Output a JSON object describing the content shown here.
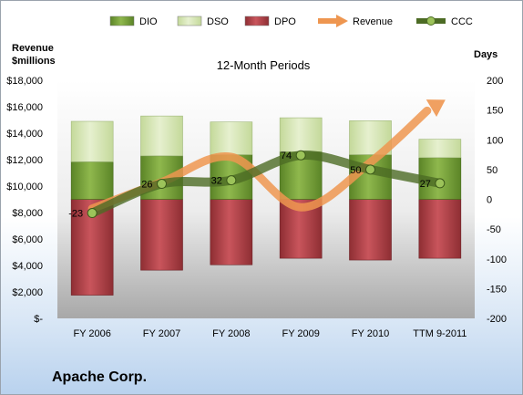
{
  "chart_data": {
    "type": "bar",
    "title": "12-Month Periods",
    "company": "Apache Corp.",
    "left_axis_label": [
      "Revenue",
      "$millions"
    ],
    "right_axis_label": "Days",
    "categories": [
      "FY 2006",
      "FY 2007",
      "FY 2008",
      "FY 2009",
      "FY 2010",
      "TTM 9-2011"
    ],
    "left_ylim": [
      0,
      18000
    ],
    "left_ticks": [
      0,
      2000,
      4000,
      6000,
      8000,
      10000,
      12000,
      14000,
      16000,
      18000
    ],
    "left_tick_labels": [
      "$-",
      "$2,000",
      "$4,000",
      "$6,000",
      "$8,000",
      "$10,000",
      "$12,000",
      "$14,000",
      "$16,000",
      "$18,000"
    ],
    "right_ylim": [
      -200,
      200
    ],
    "right_ticks": [
      -200,
      -150,
      -100,
      -50,
      0,
      50,
      100,
      150,
      200
    ],
    "right_tick_labels": [
      "-200",
      "-150",
      "-100",
      "-50",
      "0",
      "50",
      "100",
      "150",
      "200"
    ],
    "legend": [
      {
        "name": "DIO",
        "kind": "bar",
        "color": "#77a03a"
      },
      {
        "name": "DSO",
        "kind": "bar",
        "color": "#d3e4ad"
      },
      {
        "name": "DPO",
        "kind": "bar",
        "color": "#b5414a"
      },
      {
        "name": "Revenue",
        "kind": "arrow",
        "color": "#ee9650"
      },
      {
        "name": "CCC",
        "kind": "line",
        "color": "#4c6b24"
      }
    ],
    "series": [
      {
        "name": "DPO",
        "axis": "right",
        "values": [
          -161,
          -119,
          -110,
          -99,
          -102,
          -99
        ]
      },
      {
        "name": "DIO",
        "axis": "right",
        "values": [
          63,
          73,
          75,
          80,
          75,
          70
        ]
      },
      {
        "name": "DSO",
        "axis": "right",
        "values": [
          68,
          67,
          55,
          57,
          57,
          31
        ]
      },
      {
        "name": "Revenue",
        "axis": "left",
        "values": [
          8300,
          10300,
          12200,
          8400,
          11800,
          15700
        ]
      },
      {
        "name": "CCC",
        "axis": "right",
        "values": [
          -23,
          26,
          32,
          74,
          50,
          27
        ]
      }
    ],
    "ccc_labels": [
      "-23",
      "26",
      "32",
      "74",
      "50",
      "27"
    ]
  }
}
